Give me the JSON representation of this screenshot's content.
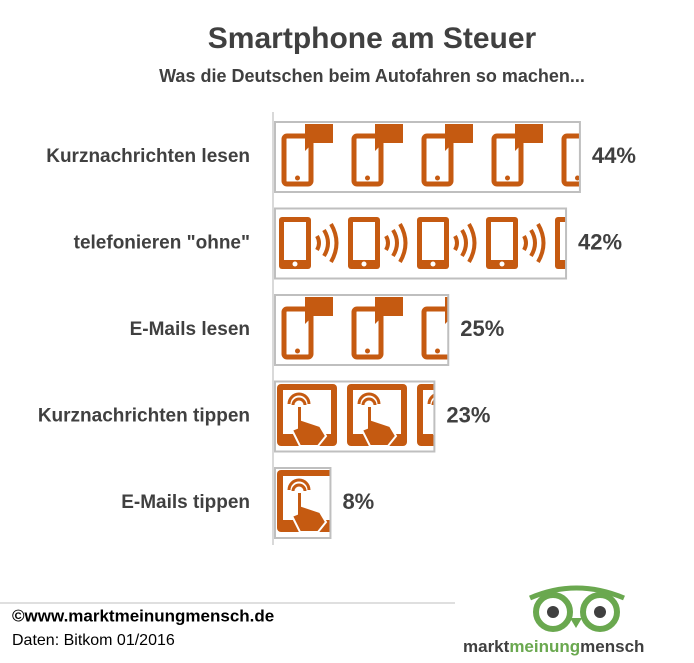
{
  "chart_data": {
    "type": "bar",
    "orientation": "horizontal",
    "title": "Smartphone am Steuer",
    "subtitle": "Was die Deutschen beim Autofahren so machen...",
    "categories": [
      "Kurznachrichten lesen",
      "telefonieren \"ohne\"",
      "E-Mails lesen",
      "Kurznachrichten tippen",
      "E-Mails tippen"
    ],
    "values": [
      44,
      42,
      25,
      23,
      8
    ],
    "value_labels": [
      "44%",
      "42%",
      "25%",
      "23%",
      "8%"
    ],
    "color": "#c55a11"
  },
  "footer": {
    "copyright": "©www.marktmeinungmensch.de",
    "source": "Daten: Bitkom 01/2016"
  },
  "logo": {
    "part1": "markt",
    "part2": "meinung",
    "part3": "mensch"
  }
}
